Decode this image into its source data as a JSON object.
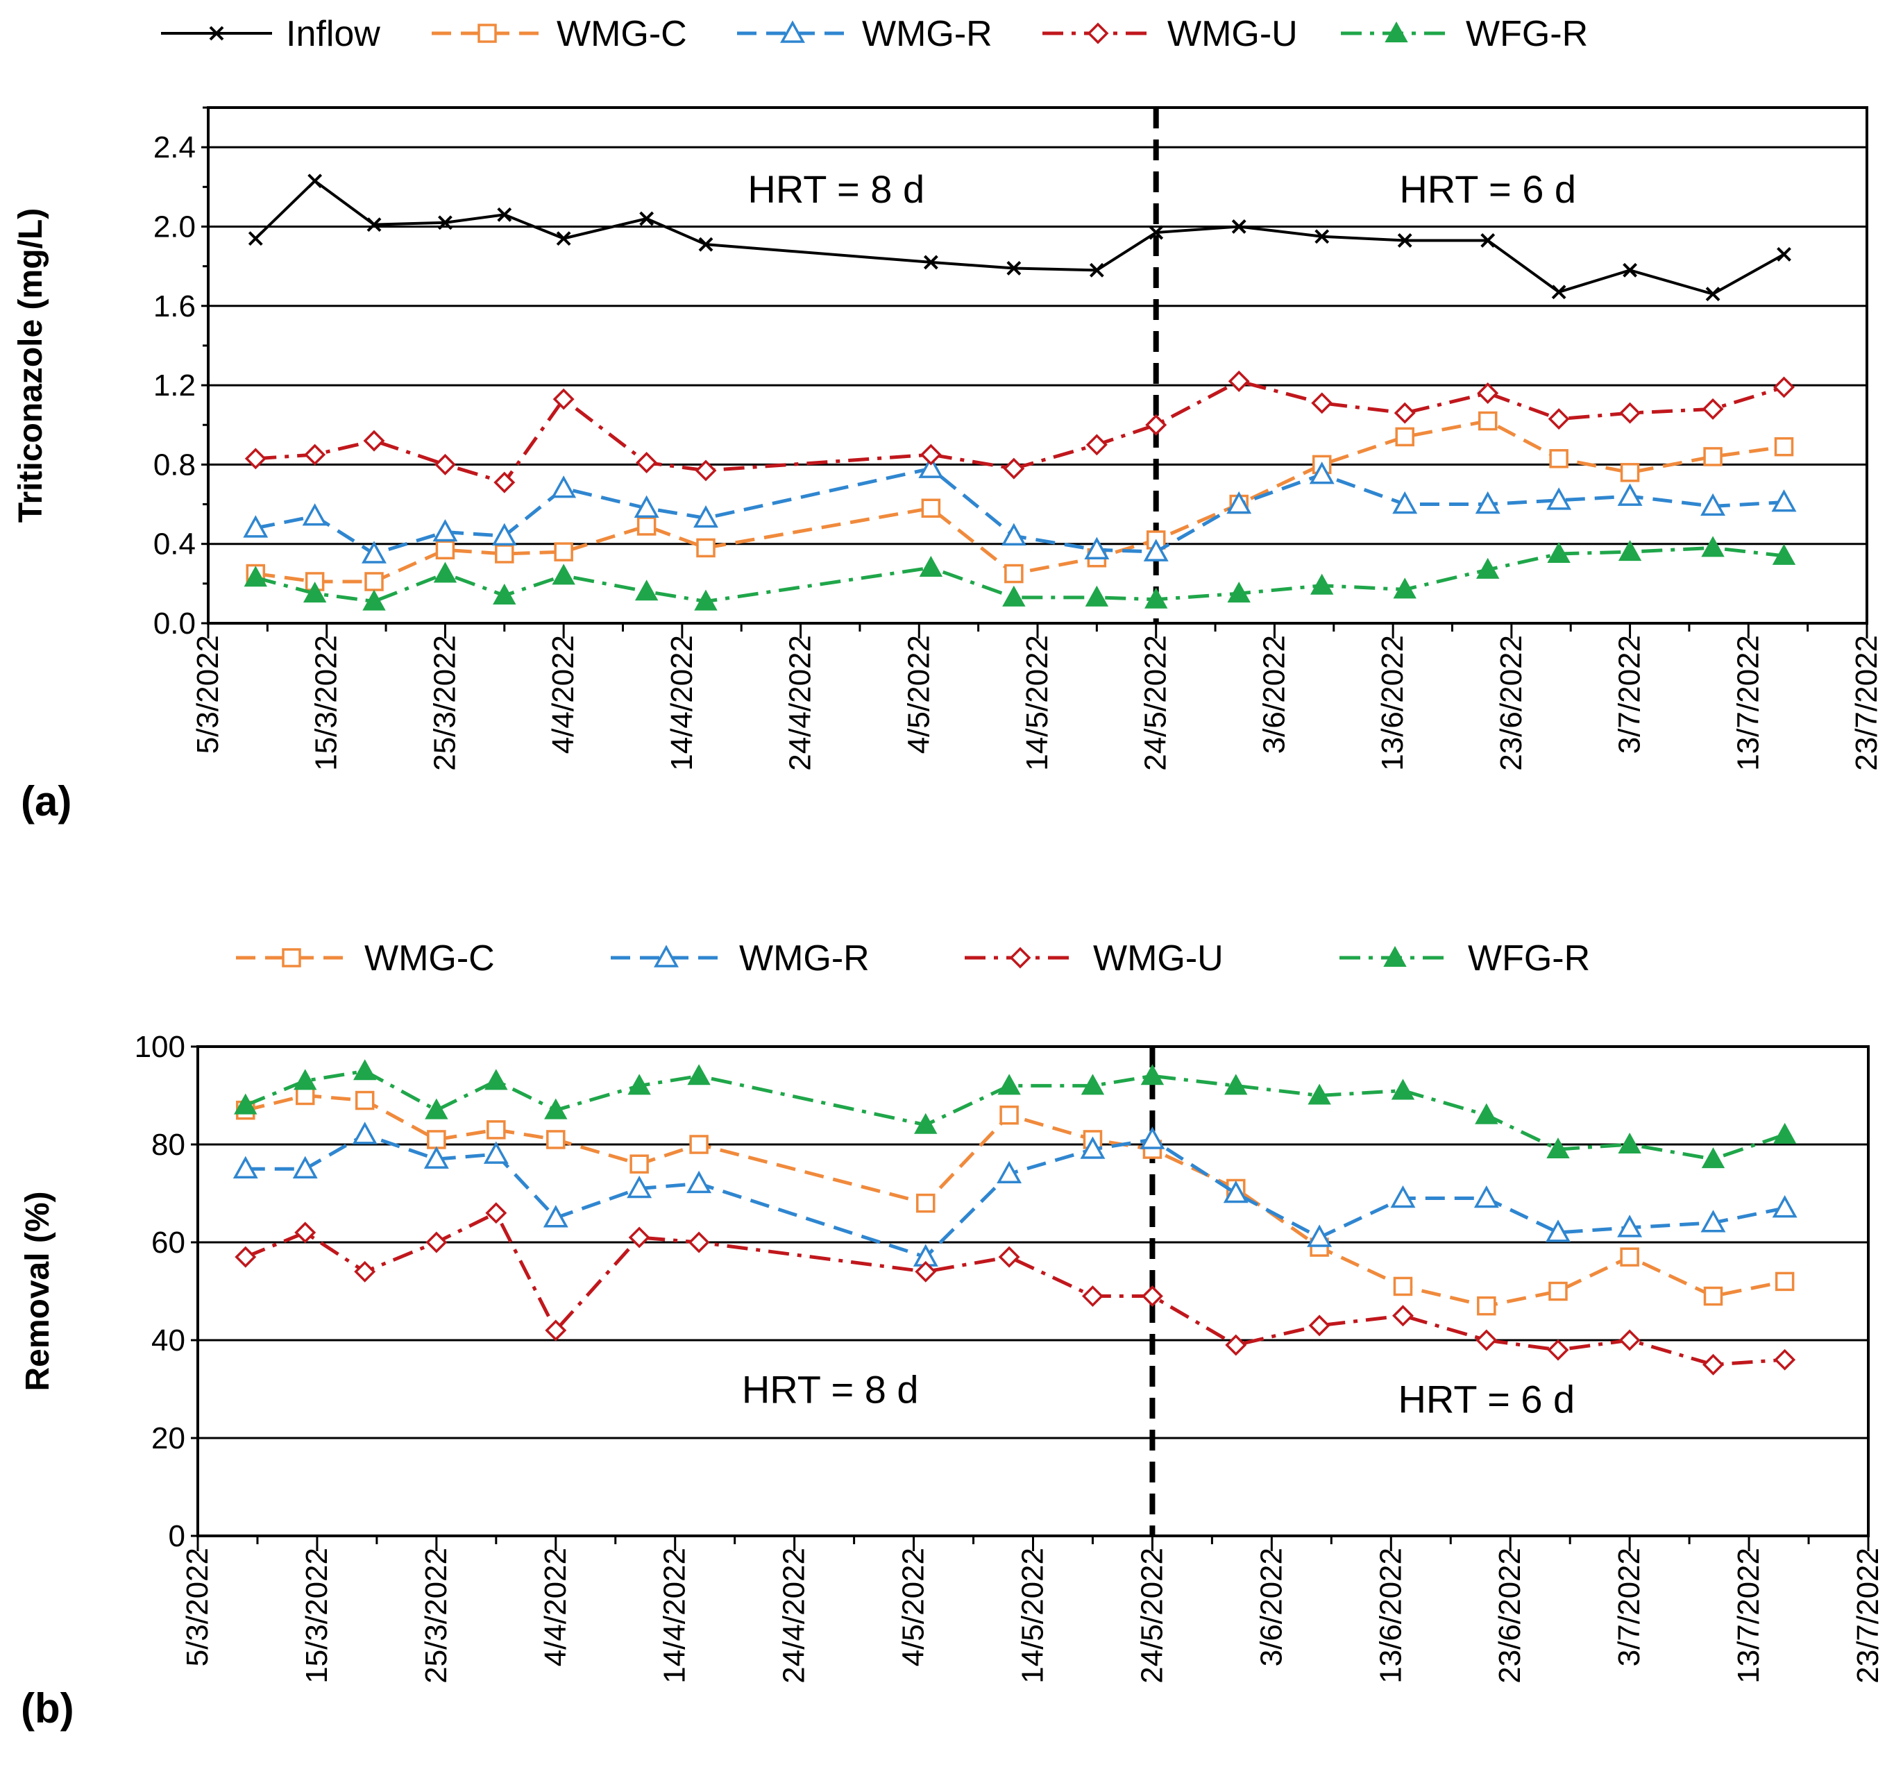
{
  "colors": {
    "Inflow": "#000000",
    "WMG-C": "#F08A3C",
    "WMG-R": "#2F86D0",
    "WMG-U": "#C0171C",
    "WFG-R": "#1FA64A"
  },
  "chart_data": [
    {
      "type": "line",
      "panel_label": "(a)",
      "ylabel": "Triticonazole (mg/L)",
      "xlabel": "",
      "x_axis": "date",
      "xlim": [
        "2022-03-05",
        "2022-07-23"
      ],
      "x_ticks": [
        "5/3/2022",
        "15/3/2022",
        "25/3/2022",
        "4/4/2022",
        "14/4/2022",
        "24/4/2022",
        "4/5/2022",
        "14/5/2022",
        "24/5/2022",
        "3/6/2022",
        "13/6/2022",
        "23/6/2022",
        "3/7/2022",
        "13/7/2022",
        "23/7/2022"
      ],
      "ylim": [
        0,
        2.6
      ],
      "y_ticks": [
        "0.0",
        "0.4",
        "0.8",
        "1.2",
        "1.6",
        "2.0",
        "2.4"
      ],
      "grid": "horizontal",
      "legend_position": "top",
      "annotations": [
        {
          "text": "HRT = 8 d",
          "x": "2022-04-27",
          "y": 2.19
        },
        {
          "text": "HRT = 6 d",
          "x": "2022-06-21",
          "y": 2.19
        }
      ],
      "divider_date": "2022-05-24",
      "series": [
        {
          "name": "Inflow",
          "marker": "x",
          "style": "solid",
          "x": [
            "2022-03-09",
            "2022-03-14",
            "2022-03-19",
            "2022-03-25",
            "2022-03-30",
            "2022-04-04",
            "2022-04-11",
            "2022-04-16",
            "2022-05-05",
            "2022-05-12",
            "2022-05-19",
            "2022-05-24",
            "2022-05-31",
            "2022-06-07",
            "2022-06-14",
            "2022-06-21",
            "2022-06-27",
            "2022-07-03",
            "2022-07-10",
            "2022-07-16"
          ],
          "values": [
            1.94,
            2.23,
            2.01,
            2.02,
            2.06,
            1.94,
            2.04,
            1.91,
            1.82,
            1.79,
            1.78,
            1.97,
            2.0,
            1.95,
            1.93,
            1.93,
            1.67,
            1.78,
            1.66,
            1.86
          ]
        },
        {
          "name": "WMG-C",
          "marker": "square-open",
          "style": "dashed",
          "x": [
            "2022-03-09",
            "2022-03-14",
            "2022-03-19",
            "2022-03-25",
            "2022-03-30",
            "2022-04-04",
            "2022-04-11",
            "2022-04-16",
            "2022-05-05",
            "2022-05-12",
            "2022-05-19",
            "2022-05-24",
            "2022-05-31",
            "2022-06-07",
            "2022-06-14",
            "2022-06-21",
            "2022-06-27",
            "2022-07-03",
            "2022-07-10",
            "2022-07-16"
          ],
          "values": [
            0.25,
            0.21,
            0.21,
            0.37,
            0.35,
            0.36,
            0.49,
            0.38,
            0.58,
            0.25,
            0.33,
            0.42,
            0.6,
            0.8,
            0.94,
            1.02,
            0.83,
            0.76,
            0.84,
            0.89
          ]
        },
        {
          "name": "WMG-R",
          "marker": "triangle-open",
          "style": "dashed",
          "x": [
            "2022-03-09",
            "2022-03-14",
            "2022-03-19",
            "2022-03-25",
            "2022-03-30",
            "2022-04-04",
            "2022-04-11",
            "2022-04-16",
            "2022-05-05",
            "2022-05-12",
            "2022-05-19",
            "2022-05-24",
            "2022-05-31",
            "2022-06-07",
            "2022-06-14",
            "2022-06-21",
            "2022-06-27",
            "2022-07-03",
            "2022-07-10",
            "2022-07-16"
          ],
          "values": [
            0.48,
            0.54,
            0.35,
            0.46,
            0.44,
            0.68,
            0.58,
            0.53,
            0.78,
            0.44,
            0.37,
            0.36,
            0.6,
            0.75,
            0.6,
            0.6,
            0.62,
            0.64,
            0.59,
            0.61
          ]
        },
        {
          "name": "WMG-U",
          "marker": "diamond-open",
          "style": "dashdot",
          "x": [
            "2022-03-09",
            "2022-03-14",
            "2022-03-19",
            "2022-03-25",
            "2022-03-30",
            "2022-04-04",
            "2022-04-11",
            "2022-04-16",
            "2022-05-05",
            "2022-05-12",
            "2022-05-19",
            "2022-05-24",
            "2022-05-31",
            "2022-06-07",
            "2022-06-14",
            "2022-06-21",
            "2022-06-27",
            "2022-07-03",
            "2022-07-10",
            "2022-07-16"
          ],
          "values": [
            0.83,
            0.85,
            0.92,
            0.8,
            0.71,
            1.13,
            0.81,
            0.77,
            0.85,
            0.78,
            0.9,
            1.0,
            1.22,
            1.11,
            1.06,
            1.16,
            1.03,
            1.06,
            1.08,
            1.19
          ]
        },
        {
          "name": "WFG-R",
          "marker": "triangle-filled",
          "style": "dashdot",
          "x": [
            "2022-03-09",
            "2022-03-14",
            "2022-03-19",
            "2022-03-25",
            "2022-03-30",
            "2022-04-04",
            "2022-04-11",
            "2022-04-16",
            "2022-05-05",
            "2022-05-12",
            "2022-05-19",
            "2022-05-24",
            "2022-05-31",
            "2022-06-07",
            "2022-06-14",
            "2022-06-21",
            "2022-06-27",
            "2022-07-03",
            "2022-07-10",
            "2022-07-16"
          ],
          "values": [
            0.23,
            0.15,
            0.11,
            0.25,
            0.14,
            0.24,
            0.16,
            0.11,
            0.28,
            0.13,
            0.13,
            0.12,
            0.15,
            0.19,
            0.17,
            0.27,
            0.35,
            0.36,
            0.38,
            0.34
          ]
        }
      ]
    },
    {
      "type": "line",
      "panel_label": "(b)",
      "ylabel": "Removal (%)",
      "xlabel": "",
      "x_axis": "date",
      "xlim": [
        "2022-03-05",
        "2022-07-23"
      ],
      "x_ticks": [
        "5/3/2022",
        "15/3/2022",
        "25/3/2022",
        "4/4/2022",
        "14/4/2022",
        "24/4/2022",
        "4/5/2022",
        "14/5/2022",
        "24/5/2022",
        "3/6/2022",
        "13/6/2022",
        "23/6/2022",
        "3/7/2022",
        "13/7/2022",
        "23/7/2022"
      ],
      "ylim": [
        0,
        100
      ],
      "y_ticks": [
        "0",
        "20",
        "40",
        "60",
        "80",
        "100"
      ],
      "grid": "horizontal",
      "legend_position": "top",
      "annotations": [
        {
          "text": "HRT = 8 d",
          "x": "2022-04-27",
          "y": 30
        },
        {
          "text": "HRT = 6 d",
          "x": "2022-06-21",
          "y": 28
        }
      ],
      "divider_date": "2022-05-24",
      "series": [
        {
          "name": "WMG-C",
          "marker": "square-open",
          "style": "dashed",
          "x": [
            "2022-03-09",
            "2022-03-14",
            "2022-03-19",
            "2022-03-25",
            "2022-03-30",
            "2022-04-04",
            "2022-04-11",
            "2022-04-16",
            "2022-05-05",
            "2022-05-12",
            "2022-05-19",
            "2022-05-24",
            "2022-05-31",
            "2022-06-07",
            "2022-06-14",
            "2022-06-21",
            "2022-06-27",
            "2022-07-03",
            "2022-07-10",
            "2022-07-16"
          ],
          "values": [
            87,
            90,
            89,
            81,
            83,
            81,
            76,
            80,
            68,
            86,
            81,
            79,
            71,
            59,
            51,
            47,
            50,
            57,
            49,
            52
          ]
        },
        {
          "name": "WMG-R",
          "marker": "triangle-open",
          "style": "dashed",
          "x": [
            "2022-03-09",
            "2022-03-14",
            "2022-03-19",
            "2022-03-25",
            "2022-03-30",
            "2022-04-04",
            "2022-04-11",
            "2022-04-16",
            "2022-05-05",
            "2022-05-12",
            "2022-05-19",
            "2022-05-24",
            "2022-05-31",
            "2022-06-07",
            "2022-06-14",
            "2022-06-21",
            "2022-06-27",
            "2022-07-03",
            "2022-07-10",
            "2022-07-16"
          ],
          "values": [
            75,
            75,
            82,
            77,
            78,
            65,
            71,
            72,
            57,
            74,
            79,
            81,
            70,
            61,
            69,
            69,
            62,
            63,
            64,
            67
          ]
        },
        {
          "name": "WMG-U",
          "marker": "diamond-open",
          "style": "dashdot",
          "x": [
            "2022-03-09",
            "2022-03-14",
            "2022-03-19",
            "2022-03-25",
            "2022-03-30",
            "2022-04-04",
            "2022-04-11",
            "2022-04-16",
            "2022-05-05",
            "2022-05-12",
            "2022-05-19",
            "2022-05-24",
            "2022-05-31",
            "2022-06-07",
            "2022-06-14",
            "2022-06-21",
            "2022-06-27",
            "2022-07-03",
            "2022-07-10",
            "2022-07-16"
          ],
          "values": [
            57,
            62,
            54,
            60,
            66,
            42,
            61,
            60,
            54,
            57,
            49,
            49,
            39,
            43,
            45,
            40,
            38,
            40,
            35,
            36
          ]
        },
        {
          "name": "WFG-R",
          "marker": "triangle-filled",
          "style": "dashdot",
          "x": [
            "2022-03-09",
            "2022-03-14",
            "2022-03-19",
            "2022-03-25",
            "2022-03-30",
            "2022-04-04",
            "2022-04-11",
            "2022-04-16",
            "2022-05-05",
            "2022-05-12",
            "2022-05-19",
            "2022-05-24",
            "2022-05-31",
            "2022-06-07",
            "2022-06-14",
            "2022-06-21",
            "2022-06-27",
            "2022-07-03",
            "2022-07-10",
            "2022-07-16"
          ],
          "values": [
            88,
            93,
            95,
            87,
            93,
            87,
            92,
            94,
            84,
            92,
            92,
            94,
            92,
            90,
            91,
            86,
            79,
            80,
            77,
            82
          ]
        }
      ]
    }
  ]
}
